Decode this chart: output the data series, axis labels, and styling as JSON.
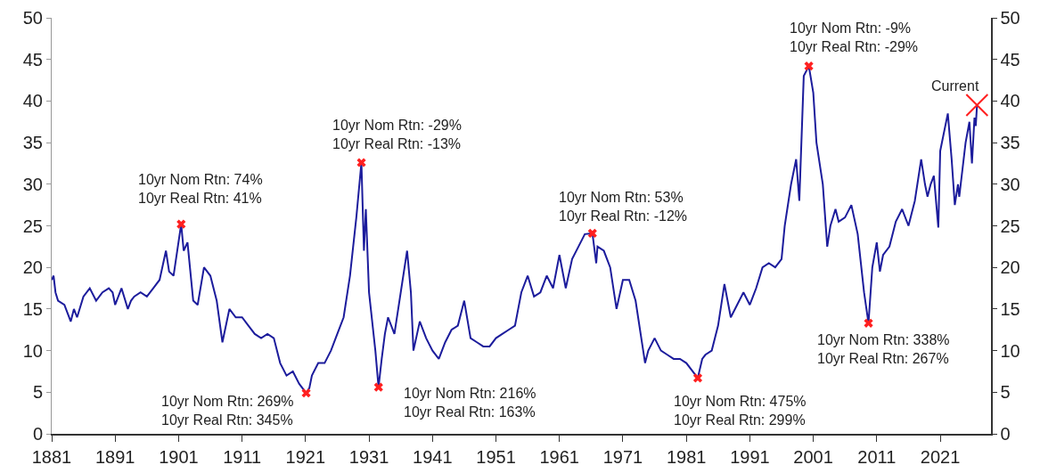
{
  "chart_data": {
    "type": "line",
    "xlim": [
      1881,
      2029
    ],
    "xticks": [
      1881,
      1891,
      1901,
      1911,
      1921,
      1931,
      1941,
      1951,
      1961,
      1971,
      1981,
      1991,
      2001,
      2011,
      2021
    ],
    "ylim": [
      0,
      50
    ],
    "yticks": [
      0,
      5,
      10,
      15,
      20,
      25,
      30,
      35,
      40,
      45,
      50
    ],
    "y2lim": [
      0,
      50
    ],
    "y2ticks": [
      0,
      5,
      10,
      15,
      20,
      25,
      30,
      35,
      40,
      45,
      50
    ],
    "grid": false,
    "line_style": "solid",
    "series": [
      {
        "color": "#1c1c9c",
        "x": [
          1881.0,
          1881.3,
          1881.6,
          1882,
          1883,
          1884,
          1884.5,
          1885,
          1886,
          1887,
          1888,
          1889,
          1890,
          1890.6,
          1891,
          1892,
          1893,
          1893.5,
          1894,
          1895,
          1896,
          1897,
          1898,
          1899,
          1899.5,
          1900.2,
          1901.4,
          1901.8,
          1902.4,
          1903.3,
          1904,
          1905,
          1906,
          1907,
          1907.9,
          1909,
          1910,
          1911,
          1912,
          1913,
          1914,
          1915,
          1916,
          1917,
          1918,
          1919,
          1920,
          1921.1,
          1921.6,
          1922,
          1923,
          1924,
          1925,
          1926,
          1927,
          1928,
          1929,
          1929.8,
          1930.2,
          1930.5,
          1931,
          1932,
          1932.5,
          1933,
          1933.5,
          1934,
          1935,
          1936,
          1937,
          1937.6,
          1938,
          1939,
          1940,
          1941,
          1942,
          1943,
          1944,
          1945,
          1946,
          1947,
          1948,
          1949,
          1950,
          1951,
          1952,
          1953,
          1954,
          1955,
          1956,
          1957,
          1958,
          1959,
          1960,
          1961,
          1962,
          1963,
          1964,
          1965,
          1966.2,
          1966.8,
          1967,
          1968,
          1969,
          1970,
          1971,
          1972,
          1973,
          1974.5,
          1975,
          1976,
          1977,
          1978,
          1979,
          1980,
          1981,
          1982.8,
          1983.5,
          1984,
          1985,
          1986,
          1987,
          1988,
          1989,
          1990,
          1991,
          1992,
          1993,
          1994,
          1995,
          1996,
          1996.5,
          1997.5,
          1998.3,
          1998.8,
          1999.5,
          2000.3,
          2001,
          2001.5,
          2002.5,
          2003.2,
          2003.7,
          2004.5,
          2005,
          2006,
          2007,
          2008,
          2009,
          2009.7,
          2010.3,
          2011,
          2011.5,
          2012,
          2013,
          2014,
          2015,
          2016,
          2017,
          2018,
          2018.6,
          2019,
          2019.5,
          2020,
          2020.7,
          2021,
          2022.2,
          2022.8,
          2023.3,
          2023.8,
          2024,
          2025,
          2025.6,
          2026,
          2026.4,
          2026.6,
          2026.8
        ],
        "values": [
          18.5,
          19.0,
          17,
          16,
          15.5,
          13.5,
          15,
          14,
          16.5,
          17.5,
          16,
          17,
          17.5,
          17,
          15.5,
          17.5,
          15,
          16,
          16.5,
          17,
          16.5,
          17.5,
          18.5,
          22,
          19.5,
          19,
          25.2,
          22,
          23,
          16,
          15.5,
          20,
          19,
          16,
          11,
          15,
          14,
          14,
          13,
          12,
          11.5,
          12,
          11.5,
          8.5,
          7,
          7.5,
          6,
          4.9,
          5.5,
          7,
          8.5,
          8.5,
          10,
          12,
          14,
          19,
          26,
          32.6,
          22,
          27,
          17,
          10,
          5.6,
          9,
          12,
          14,
          12,
          17,
          22,
          17,
          10,
          13.5,
          11.5,
          10,
          9,
          11,
          12.5,
          13,
          16,
          11.5,
          11,
          10.5,
          10.5,
          11.5,
          12,
          12.5,
          13,
          17,
          19,
          16.5,
          17,
          19,
          17.5,
          21.5,
          17.5,
          21,
          22.5,
          24,
          24.1,
          20.5,
          22.5,
          22,
          20,
          15,
          18.5,
          18.5,
          16,
          8.5,
          10,
          11.5,
          10,
          9.5,
          9,
          9,
          8.5,
          6.7,
          9,
          9.5,
          10,
          13,
          18,
          14,
          15.5,
          17,
          15.5,
          17.5,
          20,
          20.5,
          20,
          21,
          25,
          30,
          33,
          28,
          43,
          44.2,
          41,
          35,
          30,
          22.5,
          25,
          27,
          25.5,
          26,
          27.5,
          24,
          17,
          13.3,
          20,
          23,
          19.5,
          21.5,
          22.5,
          25.5,
          27,
          25,
          28,
          33,
          30,
          28.5,
          30,
          31,
          24.8,
          34,
          38.5,
          33,
          27.5,
          30,
          28.5,
          35,
          37.5,
          32.5,
          38,
          37,
          39.5
        ]
      },
      {
        "type": "scatter",
        "marker": "cross",
        "color": "#ff2020",
        "x": [
          1901.4,
          1921.1,
          1929.8,
          1932.5,
          1966.2,
          1982.8,
          2000.3,
          2009.7
        ],
        "values": [
          25.2,
          4.9,
          32.6,
          5.6,
          24.1,
          6.7,
          44.2,
          13.3
        ]
      },
      {
        "type": "scatter",
        "marker": "cross",
        "color": "#ff2020",
        "x": [
          2026.8
        ],
        "values": [
          39.5
        ]
      }
    ],
    "annotations": [
      {
        "text": "10yr Nom Rtn: 74%\n10yr Real Rtn: 41%",
        "x": 1901.4,
        "y": 25.2
      },
      {
        "text": "10yr Nom Rtn: 269%\n10yr Real Rtn: 345%",
        "x": 1921.1,
        "y": 4.9
      },
      {
        "text": "10yr Nom Rtn: -29%\n10yr Real Rtn: -13%",
        "x": 1929.8,
        "y": 32.6
      },
      {
        "text": "10yr Nom Rtn: 216%\n10yr Real Rtn: 163%",
        "x": 1932.5,
        "y": 5.6
      },
      {
        "text": "10yr Nom Rtn: 53%\n10yr Real Rtn: -12%",
        "x": 1966.2,
        "y": 24.1
      },
      {
        "text": "10yr Nom Rtn: 475%\n10yr Real Rtn: 299%",
        "x": 1982.8,
        "y": 6.7
      },
      {
        "text": "10yr Nom Rtn: -9%\n10yr Real Rtn: -29%",
        "x": 2000.3,
        "y": 44.2
      },
      {
        "text": "10yr Nom Rtn: 338%\n10yr Real Rtn: 267%",
        "x": 2009.7,
        "y": 13.3
      },
      {
        "text": "Current",
        "x": 2026.8,
        "y": 39.5
      }
    ]
  }
}
